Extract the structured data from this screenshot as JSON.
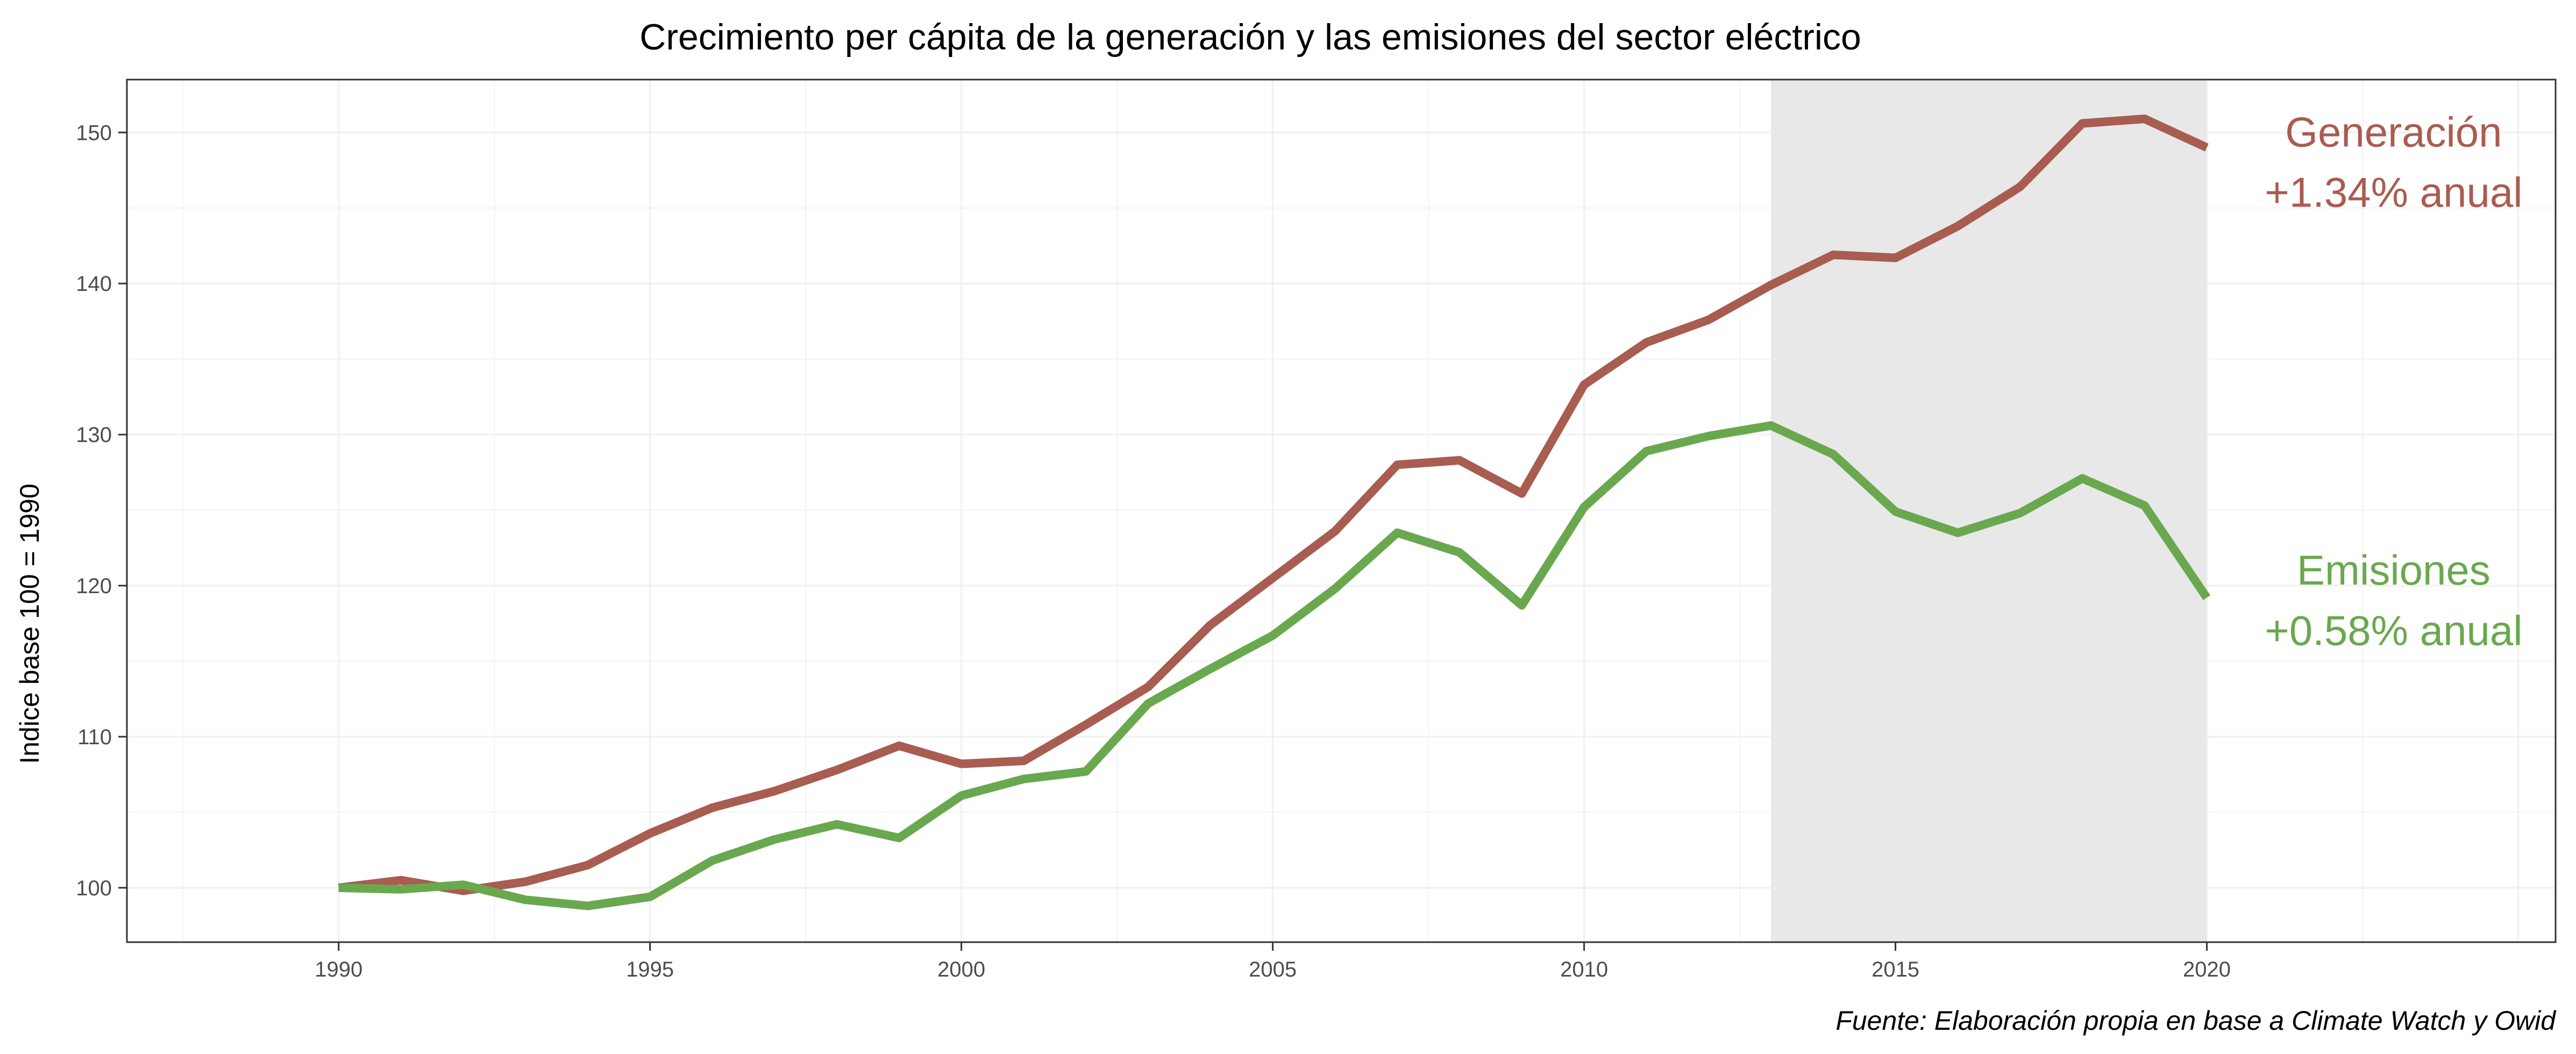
{
  "chart_data": {
    "type": "line",
    "title": "Crecimiento per cápita de la generación y las emisiones del sector eléctrico",
    "xlabel": "",
    "ylabel": "Indice base 100 = 1990",
    "caption": "Fuente: Elaboración propia en base a Climate Watch y Owid",
    "xlim": [
      1986.6,
      2025.6
    ],
    "ylim": [
      96.4,
      153.5
    ],
    "x_ticks": [
      1990,
      1995,
      2000,
      2005,
      2010,
      2015,
      2020
    ],
    "y_ticks": [
      100,
      110,
      120,
      130,
      140,
      150
    ],
    "grid": true,
    "legend": "none",
    "shaded_region": {
      "x": [
        2013,
        2020
      ],
      "color": "#e8e8e8"
    },
    "x": [
      1990,
      1991,
      1992,
      1993,
      1994,
      1995,
      1996,
      1997,
      1998,
      1999,
      2000,
      2001,
      2002,
      2003,
      2004,
      2005,
      2006,
      2007,
      2008,
      2009,
      2010,
      2011,
      2012,
      2013,
      2014,
      2015,
      2016,
      2017,
      2018,
      2019,
      2020
    ],
    "series": [
      {
        "color": "#a95c50",
        "values": [
          100.0,
          100.5,
          99.8,
          100.4,
          101.5,
          103.6,
          105.3,
          106.4,
          107.8,
          109.4,
          108.2,
          108.4,
          110.8,
          113.3,
          117.4,
          120.5,
          123.6,
          128.0,
          128.3,
          126.1,
          133.3,
          136.1,
          137.6,
          139.9,
          141.9,
          141.7,
          143.8,
          146.4,
          150.6,
          150.9,
          149.0
        ]
      },
      {
        "color": "#6aa84f",
        "values": [
          100.0,
          99.9,
          100.2,
          99.2,
          98.8,
          99.4,
          101.8,
          103.2,
          104.2,
          103.3,
          106.1,
          107.2,
          107.7,
          112.2,
          114.5,
          116.7,
          119.8,
          123.5,
          122.2,
          118.7,
          125.2,
          128.9,
          129.9,
          130.6,
          128.7,
          124.9,
          123.5,
          124.8,
          127.1,
          125.3,
          119.2
        ]
      }
    ],
    "annotations": [
      {
        "lines": [
          "Generación",
          "+1.34% anual"
        ],
        "color": "#a95c50",
        "x": 2023,
        "y": [
          150.0,
          146.0
        ]
      },
      {
        "lines": [
          "Emisiones",
          "+0.58% anual"
        ],
        "color": "#6aa84f",
        "x": 2023,
        "y": [
          121.0,
          117.0
        ]
      }
    ]
  }
}
